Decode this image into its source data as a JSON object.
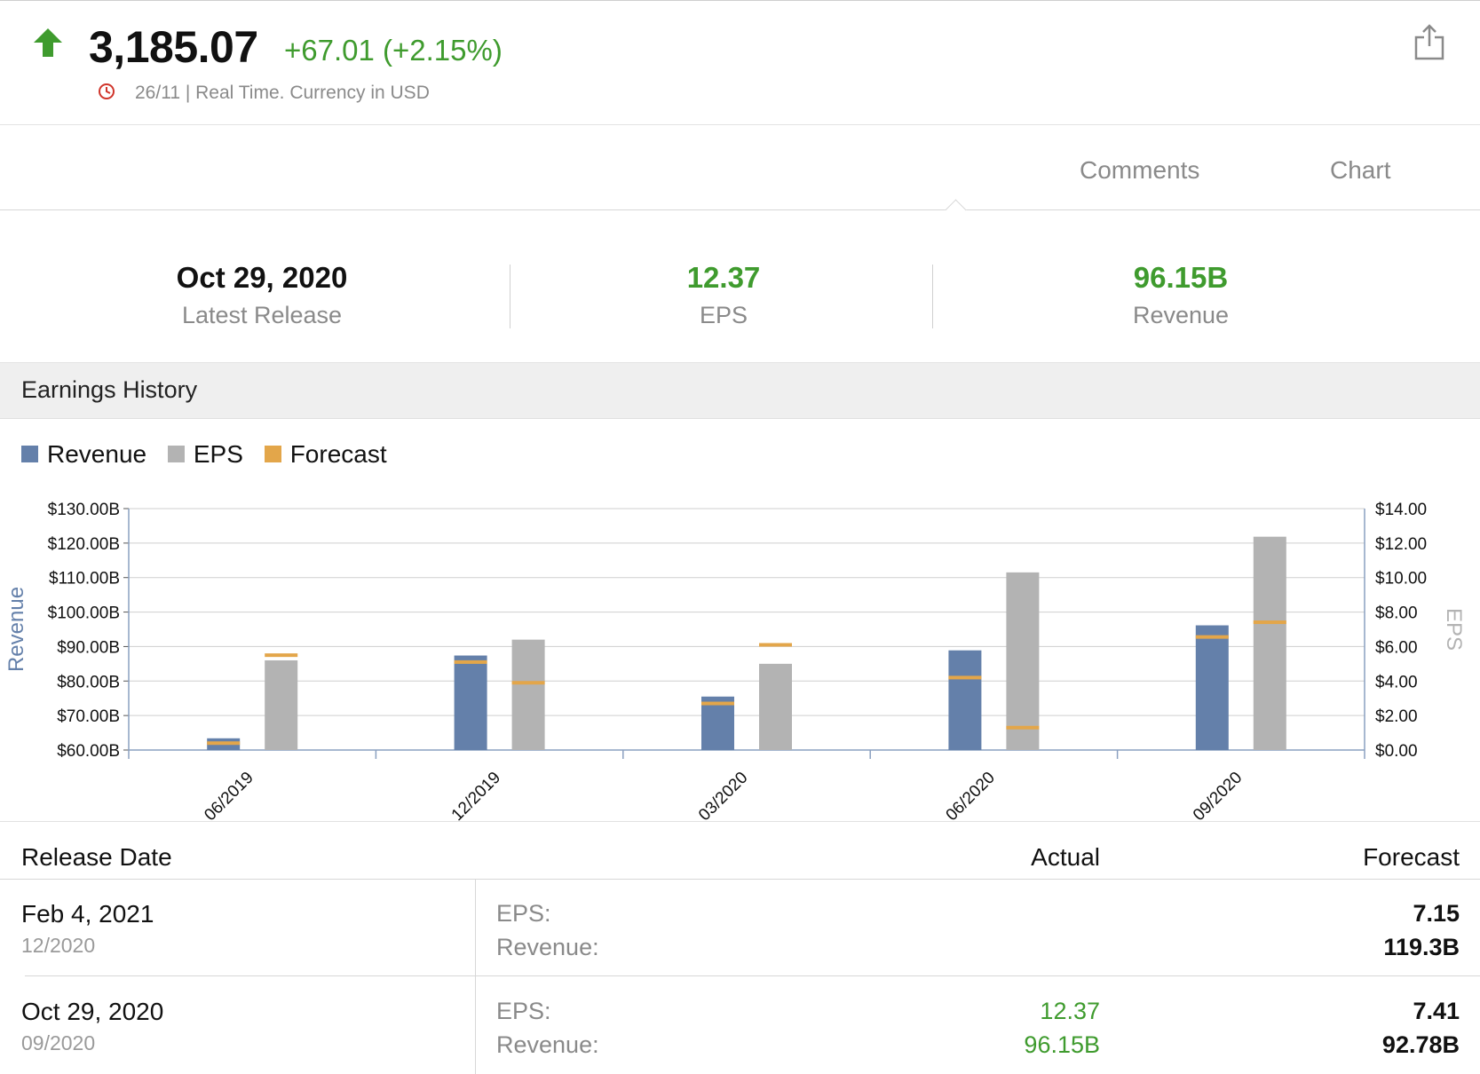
{
  "quote": {
    "price": "3,185.07",
    "change": "+67.01 (+2.15%)",
    "meta": "26/11 | Real Time. Currency in USD",
    "up_color": "#3f9b2e"
  },
  "icons": {
    "trend": "up-arrow-icon",
    "clock": "clock-icon",
    "share": "share-icon"
  },
  "tabs": [
    {
      "label": "Comments"
    },
    {
      "label": "Chart"
    }
  ],
  "summary": {
    "latest_release": {
      "value": "Oct 29, 2020",
      "label": "Latest Release"
    },
    "eps": {
      "value": "12.37",
      "label": "EPS"
    },
    "revenue": {
      "value": "96.15B",
      "label": "Revenue"
    }
  },
  "section_title": "Earnings History",
  "legend": [
    {
      "label": "Revenue",
      "color": "#6480aa"
    },
    {
      "label": "EPS",
      "color": "#b3b3b3"
    },
    {
      "label": "Forecast",
      "color": "#e3a64a"
    }
  ],
  "chart_data": {
    "type": "bar",
    "categories": [
      "06/2019",
      "12/2019",
      "03/2020",
      "06/2020",
      "09/2020"
    ],
    "series": [
      {
        "name": "Revenue",
        "axis": "left",
        "values": [
          63.4,
          87.4,
          75.5,
          88.9,
          96.15
        ]
      },
      {
        "name": "EPS",
        "axis": "right",
        "values": [
          5.2,
          6.4,
          5.0,
          10.3,
          12.37
        ]
      },
      {
        "name": "Forecast",
        "type": "marker",
        "revenue_values": [
          62.0,
          85.5,
          73.5,
          81.0,
          92.78
        ],
        "eps_values": [
          5.5,
          3.9,
          6.1,
          1.3,
          7.41
        ]
      }
    ],
    "ylabel": "Revenue",
    "y2label": "EPS",
    "ylim": [
      60,
      130
    ],
    "y2lim": [
      0,
      14
    ],
    "yticks": [
      "$60.00B",
      "$70.00B",
      "$80.00B",
      "$90.00B",
      "$100.00B",
      "$110.00B",
      "$120.00B",
      "$130.00B"
    ],
    "y2ticks": [
      "$0.00",
      "$2.00",
      "$4.00",
      "$6.00",
      "$8.00",
      "$10.00",
      "$12.00",
      "$14.00"
    ],
    "grid": true,
    "colors": {
      "revenue": "#6480aa",
      "eps": "#b3b3b3",
      "forecast": "#e3a64a",
      "grid": "#cfcfcf",
      "axis": "#8aa0c0"
    }
  },
  "table": {
    "headers": {
      "date": "Release Date",
      "actual": "Actual",
      "forecast": "Forecast"
    },
    "rows": [
      {
        "date": "Feb 4, 2021",
        "period": "12/2020",
        "eps_label": "EPS:",
        "revenue_label": "Revenue:",
        "eps_actual": "",
        "revenue_actual": "",
        "eps_forecast": "7.15",
        "revenue_forecast": "119.3B"
      },
      {
        "date": "Oct 29, 2020",
        "period": "09/2020",
        "eps_label": "EPS:",
        "revenue_label": "Revenue:",
        "eps_actual": "12.37",
        "revenue_actual": "96.15B",
        "eps_forecast": "7.41",
        "revenue_forecast": "92.78B"
      }
    ]
  }
}
